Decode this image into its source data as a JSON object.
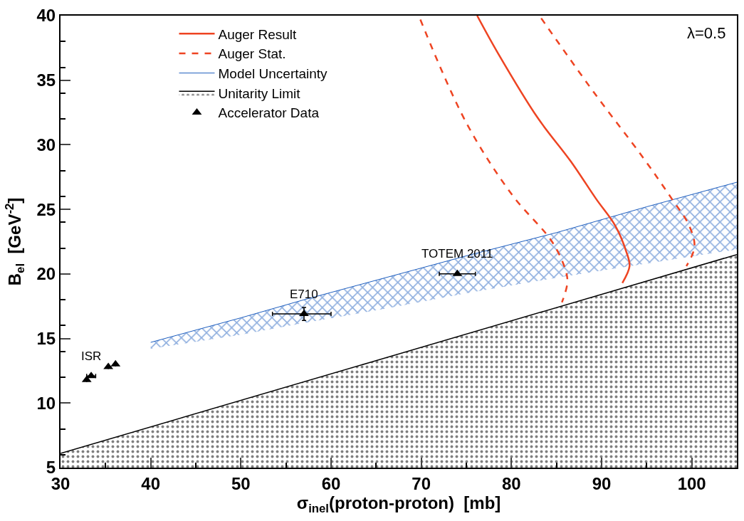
{
  "chart_data": {
    "type": "line",
    "xlabel": "σ$_{inel}$(proton-proton)  [mb]",
    "ylabel": "B$_{el}$  [GeV$^{-2}$]",
    "xlim": [
      30,
      105
    ],
    "xticks": [
      30,
      40,
      50,
      60,
      70,
      80,
      90,
      100
    ],
    "ylim": [
      5,
      40
    ],
    "yticks": [
      5,
      10,
      15,
      20,
      25,
      30,
      35,
      40
    ],
    "legend": "top left",
    "series": [
      {
        "name": "Auger Result",
        "color": "#ee4422",
        "line_style": "solid",
        "x": [
          76.2,
          78.5,
          82.9,
          86.6,
          89.4,
          91.5,
          92.75,
          93.1,
          92.3
        ],
        "values": [
          40,
          37.1,
          32.1,
          28.7,
          25.8,
          23.75,
          21.7,
          20.6,
          19.3
        ]
      },
      {
        "name": "Auger Stat.",
        "color": "#ee4422",
        "line_style": "dashed",
        "x": [
          69.9,
          75.0,
          80.1,
          84.5,
          86.0,
          86.2,
          85.6
        ],
        "values": [
          39.7,
          31.7,
          26.1,
          22.5,
          20.3,
          19.3,
          17.8
        ]
      },
      {
        "name": "Model Uncertainty",
        "type": "line",
        "line_style": "solid",
        "color": "#1f5fbf",
        "x": [
          40,
          50,
          57,
          66,
          75,
          85,
          95,
          105
        ],
        "values": [
          14.7,
          16.6,
          18.0,
          19.7,
          21.4,
          23.2,
          25.2,
          27.1
        ],
        "lower": [
          14.2,
          15.3,
          16.2,
          17.3,
          18.5,
          19.7,
          20.8,
          21.9
        ],
        "upper": [
          14.7,
          16.6,
          18.0,
          19.7,
          21.4,
          23.2,
          25.2,
          27.1
        ]
      },
      {
        "name": "Unitarity Limit",
        "type": "area",
        "color": "#000000",
        "x": [
          30,
          105
        ],
        "values": [
          6.1,
          21.5
        ]
      },
      {
        "name": "Accelerator Data",
        "type": "scatter",
        "color": "#000000",
        "marker": "triangle",
        "x": [
          32.9,
          33.4,
          35.3,
          36.1,
          57.0,
          74.0
        ],
        "values": [
          11.8,
          12.1,
          12.8,
          13.0,
          16.9,
          20.0
        ],
        "xerrors": [
          null,
          0.5,
          null,
          null,
          [
            53.5,
            60.0
          ],
          2.0
        ],
        "errors": [
          null,
          null,
          null,
          null,
          0.5,
          null
        ]
      },
      {
        "color": "#ee4422",
        "line_style": "dashed",
        "x": [
          83.3,
          89.1,
          94.5,
          97.8,
          99.7,
          100.3,
          99.4
        ],
        "values": [
          39.8,
          34.1,
          29.1,
          25.8,
          23.75,
          22.1,
          20.6
        ]
      }
    ],
    "annotations": [
      {
        "text": "ISR",
        "x": 33.4,
        "y": 12.1
      },
      {
        "text": "E710",
        "x": 57.0,
        "y": 16.9
      },
      {
        "text": "TOTEM 2011",
        "x": 74.0,
        "y": 20.0
      },
      "λ=0.5"
    ]
  }
}
